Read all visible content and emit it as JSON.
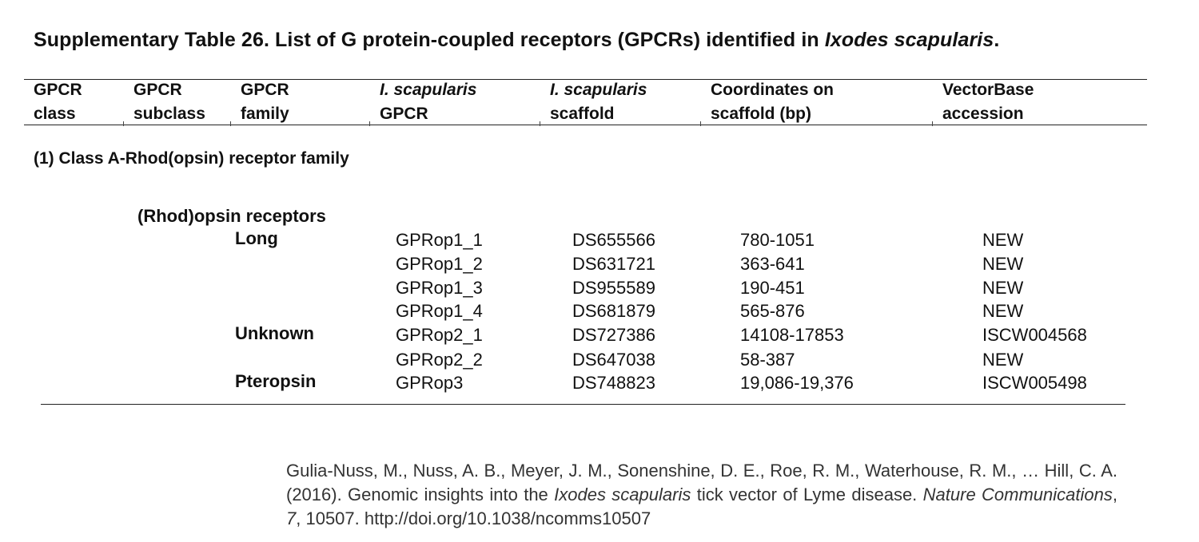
{
  "title": {
    "prefix": "Supplementary Table 26. List of G protein-coupled receptors (GPCRs) identified in ",
    "species": "Ixodes scapularis",
    "suffix": "."
  },
  "headers": [
    {
      "line1": "GPCR",
      "line2": "class",
      "italic_line1": false
    },
    {
      "line1": "GPCR",
      "line2": "subclass",
      "italic_line1": false
    },
    {
      "line1": "GPCR",
      "line2": "family",
      "italic_line1": false
    },
    {
      "line1": "I. scapularis",
      "line2": "GPCR",
      "italic_line1": true
    },
    {
      "line1": "I. scapularis",
      "line2": "scaffold",
      "italic_line1": true
    },
    {
      "line1": "Coordinates on",
      "line2": "scaffold (bp)",
      "italic_line1": false
    },
    {
      "line1": "VectorBase",
      "line2": "accession",
      "italic_line1": false
    }
  ],
  "section_label": "(1) Class A-Rhod(opsin) receptor family",
  "subclass_label": "(Rhod)opsin receptors",
  "rows": [
    {
      "family": "Long",
      "gpcr": "GPRop1_1",
      "scaffold": "DS655566",
      "coordinates": "780-1051",
      "accession": "NEW"
    },
    {
      "family": "",
      "gpcr": "GPRop1_2",
      "scaffold": "DS631721",
      "coordinates": "363-641",
      "accession": "NEW"
    },
    {
      "family": "",
      "gpcr": "GPRop1_3",
      "scaffold": "DS955589",
      "coordinates": "190-451",
      "accession": "NEW"
    },
    {
      "family": "",
      "gpcr": "GPRop1_4",
      "scaffold": "DS681879",
      "coordinates": "565-876",
      "accession": "NEW"
    },
    {
      "family": "Unknown",
      "gpcr": "GPRop2_1",
      "scaffold": "DS727386",
      "coordinates": "14108-17853",
      "accession": "ISCW004568"
    },
    {
      "family": "",
      "gpcr": "GPRop2_2",
      "scaffold": "DS647038",
      "coordinates": "58-387",
      "accession": "NEW"
    },
    {
      "family": "Pteropsin",
      "gpcr": "GPRop3",
      "scaffold": "DS748823",
      "coordinates": "19,086-19,376",
      "accession": "ISCW005498"
    }
  ],
  "citation": {
    "part1": "Gulia-Nuss, M., Nuss, A. B., Meyer, J. M., Sonenshine, D. E., Roe, R. M., Waterhouse, R. M., … Hill, C. A. (2016). Genomic insights into the ",
    "species": "Ixodes scapularis",
    "part2": " tick vector of Lyme disease. ",
    "journal": "Nature Communications",
    "part3": ", ",
    "volume": "7",
    "part4": ", 10507. http://doi.org/10.1038/ncomms10507"
  }
}
